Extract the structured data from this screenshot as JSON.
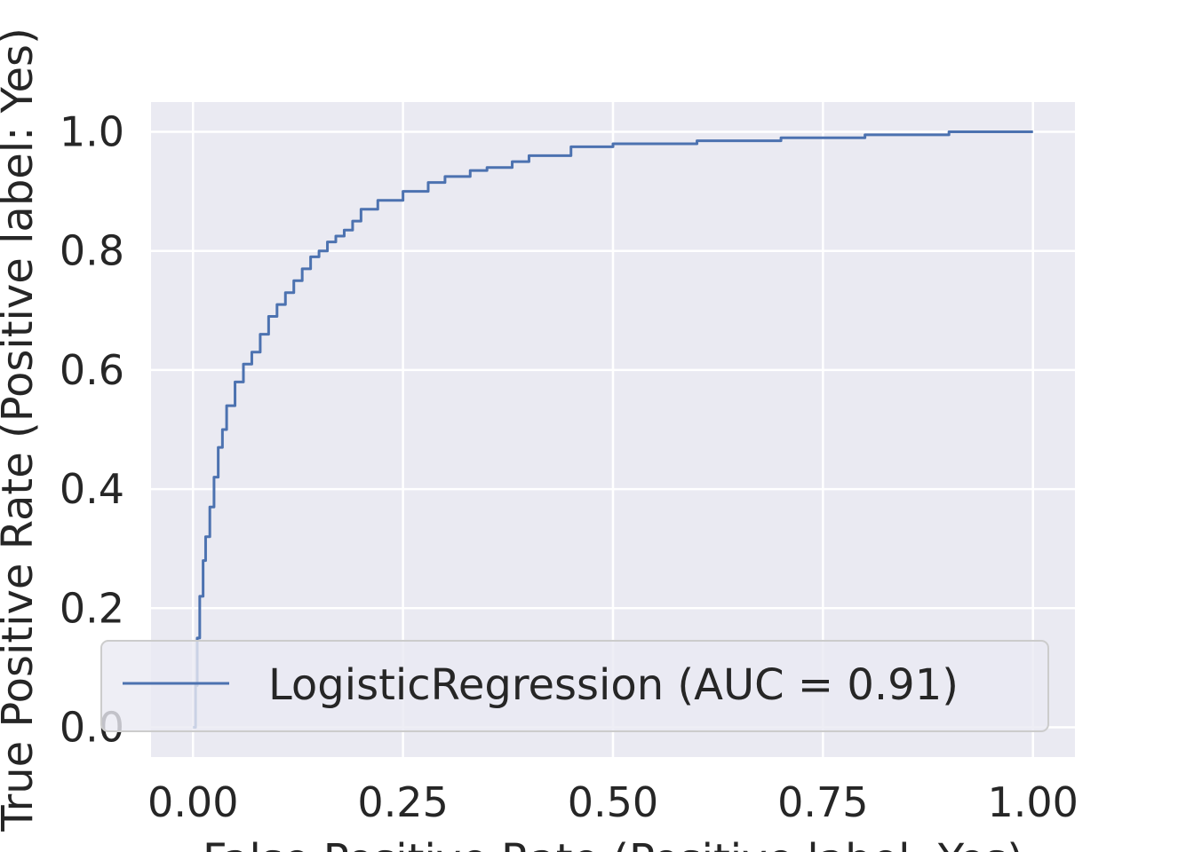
{
  "chart_data": {
    "type": "line",
    "title": "",
    "xlabel": "False Positive Rate (Positive label: Yes)",
    "ylabel": "True Positive Rate (Positive label: Yes)",
    "xlim": [
      -0.05,
      1.05
    ],
    "ylim": [
      -0.05,
      1.05
    ],
    "x_ticks": [
      0.0,
      0.25,
      0.5,
      0.75,
      1.0
    ],
    "x_tick_labels": [
      "0.00",
      "0.25",
      "0.50",
      "0.75",
      "1.00"
    ],
    "y_ticks": [
      0.0,
      0.2,
      0.4,
      0.6,
      0.8,
      1.0
    ],
    "y_tick_labels": [
      "0.0",
      "0.2",
      "0.4",
      "0.6",
      "0.8",
      "1.0"
    ],
    "grid": true,
    "legend_position": "lower-right",
    "series_color": "#4c72b0",
    "background_color": "#eaeaf2",
    "series": [
      {
        "name": "LogisticRegression (AUC = 0.91)",
        "x": [
          0.0,
          0.003,
          0.005,
          0.008,
          0.012,
          0.015,
          0.02,
          0.025,
          0.03,
          0.035,
          0.04,
          0.05,
          0.06,
          0.07,
          0.08,
          0.09,
          0.1,
          0.11,
          0.12,
          0.13,
          0.14,
          0.15,
          0.16,
          0.17,
          0.18,
          0.19,
          0.2,
          0.22,
          0.25,
          0.28,
          0.3,
          0.33,
          0.35,
          0.38,
          0.4,
          0.45,
          0.5,
          0.6,
          0.7,
          0.8,
          0.9,
          1.0
        ],
        "y": [
          0.0,
          0.07,
          0.15,
          0.22,
          0.28,
          0.32,
          0.37,
          0.42,
          0.47,
          0.5,
          0.54,
          0.58,
          0.61,
          0.63,
          0.66,
          0.69,
          0.71,
          0.73,
          0.75,
          0.77,
          0.79,
          0.8,
          0.815,
          0.825,
          0.835,
          0.85,
          0.87,
          0.885,
          0.9,
          0.915,
          0.925,
          0.935,
          0.94,
          0.95,
          0.96,
          0.975,
          0.98,
          0.985,
          0.99,
          0.995,
          1.0,
          1.0
        ]
      }
    ]
  }
}
